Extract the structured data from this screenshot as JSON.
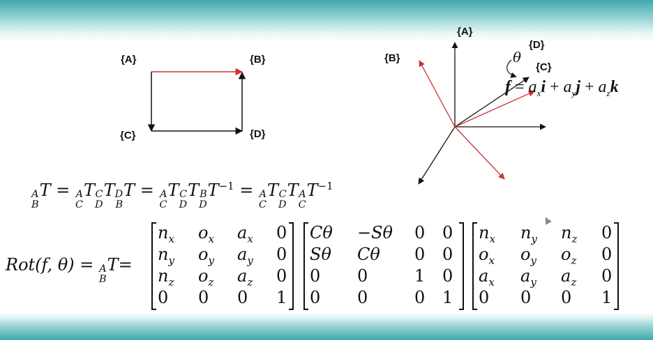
{
  "diagram_left": {
    "labels": {
      "a": "{A}",
      "b": "{B}",
      "c": "{C}",
      "d": "{D}"
    },
    "colors": {
      "ab": "#d32f2f",
      "other": "#111111"
    }
  },
  "diagram_right": {
    "labels": {
      "a": "{A}",
      "b": "{B}",
      "c": "{C}",
      "d": "{D}"
    },
    "theta": "θ",
    "f_vector": {
      "f": "f",
      "eq": "=",
      "ax": "a",
      "ax_sub": "x",
      "i": "i",
      "plus1": "+",
      "ay": "a",
      "ay_sub": "y",
      "j": "j",
      "plus2": "+",
      "az": "a",
      "az_sub": "z",
      "k": "k"
    },
    "colors": {
      "frame_a": "#111111",
      "frame_b": "#d32f2f"
    }
  },
  "equation1": {
    "t1": {
      "sup": "A",
      "sub": "B",
      "base": "T"
    },
    "eq1": "=",
    "t2": {
      "sup": "A",
      "sub": "C",
      "base": "T"
    },
    "t3": {
      "sup": "C",
      "sub": "D",
      "base": "T"
    },
    "t4": {
      "sup": "D",
      "sub": "B",
      "base": "T"
    },
    "eq2": "=",
    "t5": {
      "sup": "A",
      "sub": "C",
      "base": "T"
    },
    "t6": {
      "sup": "C",
      "sub": "D",
      "base": "T"
    },
    "t7": {
      "sup": "B",
      "sub": "D",
      "base": "T",
      "exp": "−1"
    },
    "eq3": "=",
    "t8": {
      "sup": "A",
      "sub": "C",
      "base": "T"
    },
    "t9": {
      "sup": "C",
      "sub": "D",
      "base": "T"
    },
    "t10": {
      "sup": "A",
      "sub": "C",
      "base": "T",
      "exp": "−1"
    }
  },
  "equation2": {
    "lhs": "Rot(f, θ) =",
    "t": {
      "sup": "A",
      "sub": "B",
      "base": "T"
    },
    "eq": "=",
    "m1": [
      [
        "n_x",
        "o_x",
        "a_x",
        "0"
      ],
      [
        "n_y",
        "o_y",
        "a_y",
        "0"
      ],
      [
        "n_z",
        "o_z",
        "a_z",
        "0"
      ],
      [
        "0",
        "0",
        "0",
        "1"
      ]
    ],
    "m2": [
      [
        "Cθ",
        "−Sθ",
        "0",
        "0"
      ],
      [
        "Sθ",
        "Cθ",
        "0",
        "0"
      ],
      [
        "0",
        "0",
        "1",
        "0"
      ],
      [
        "0",
        "0",
        "0",
        "1"
      ]
    ],
    "m3": [
      [
        "n_x",
        "n_y",
        "n_z",
        "0"
      ],
      [
        "o_x",
        "o_y",
        "o_z",
        "0"
      ],
      [
        "a_x",
        "a_y",
        "a_z",
        "0"
      ],
      [
        "0",
        "0",
        "0",
        "1"
      ]
    ]
  }
}
